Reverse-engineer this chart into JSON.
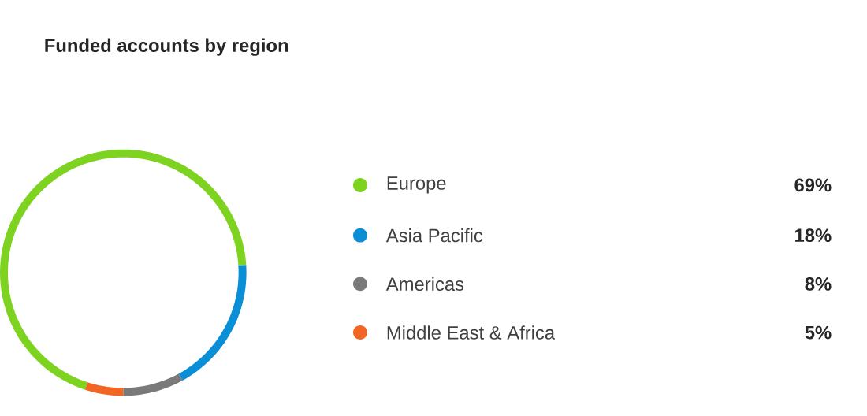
{
  "chart_data": {
    "type": "donut",
    "title": "Funded accounts by region",
    "categories": [
      "Europe",
      "Asia Pacific",
      "Americas",
      "Middle East & Africa"
    ],
    "values": [
      69,
      18,
      8,
      5
    ],
    "value_labels": [
      "69%",
      "18%",
      "8%",
      "5%"
    ],
    "colors": [
      "#7ed321",
      "#0a8fd6",
      "#7a7a7a",
      "#f26522"
    ],
    "legend": "right"
  }
}
